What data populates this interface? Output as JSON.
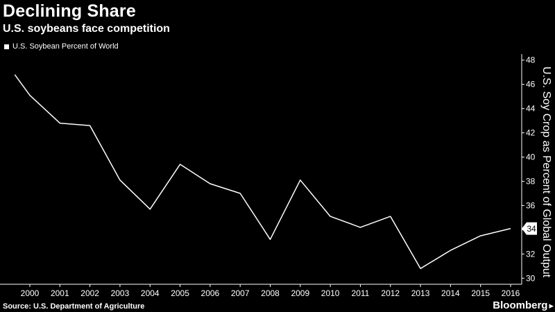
{
  "title": "Declining Share",
  "subtitle": "U.S. soybeans face competition",
  "legend": "U.S. Soybean Percent of World",
  "source": "Source: U.S. Department of Agriculture",
  "brand": "Bloomberg",
  "chart_data": {
    "type": "line",
    "title": "Declining Share",
    "subtitle": "U.S. soybeans face competition",
    "xlabel": "",
    "ylabel": "U.S. Soy Crop as Percent of Global Output",
    "ylim": [
      29.5,
      48.5
    ],
    "yticks": [
      30,
      32,
      34,
      36,
      38,
      40,
      42,
      44,
      46,
      48
    ],
    "xticks": [
      2000,
      2001,
      2002,
      2003,
      2004,
      2005,
      2006,
      2007,
      2008,
      2009,
      2010,
      2011,
      2012,
      2013,
      2014,
      2015,
      2016
    ],
    "grid": false,
    "legend_position": "top-left",
    "line_color": "#ffffff",
    "last_value_label": "34",
    "series": [
      {
        "name": "U.S. Soybean Percent of World",
        "x": [
          1999.5,
          2000,
          2001,
          2002,
          2003,
          2004,
          2005,
          2006,
          2007,
          2008,
          2009,
          2010,
          2011,
          2012,
          2013,
          2014,
          2015,
          2016
        ],
        "values": [
          46.8,
          45.1,
          42.8,
          42.6,
          38.1,
          35.7,
          39.4,
          37.8,
          37.0,
          33.2,
          38.1,
          35.1,
          34.2,
          35.1,
          30.8,
          32.3,
          33.5,
          34.1
        ]
      }
    ]
  }
}
